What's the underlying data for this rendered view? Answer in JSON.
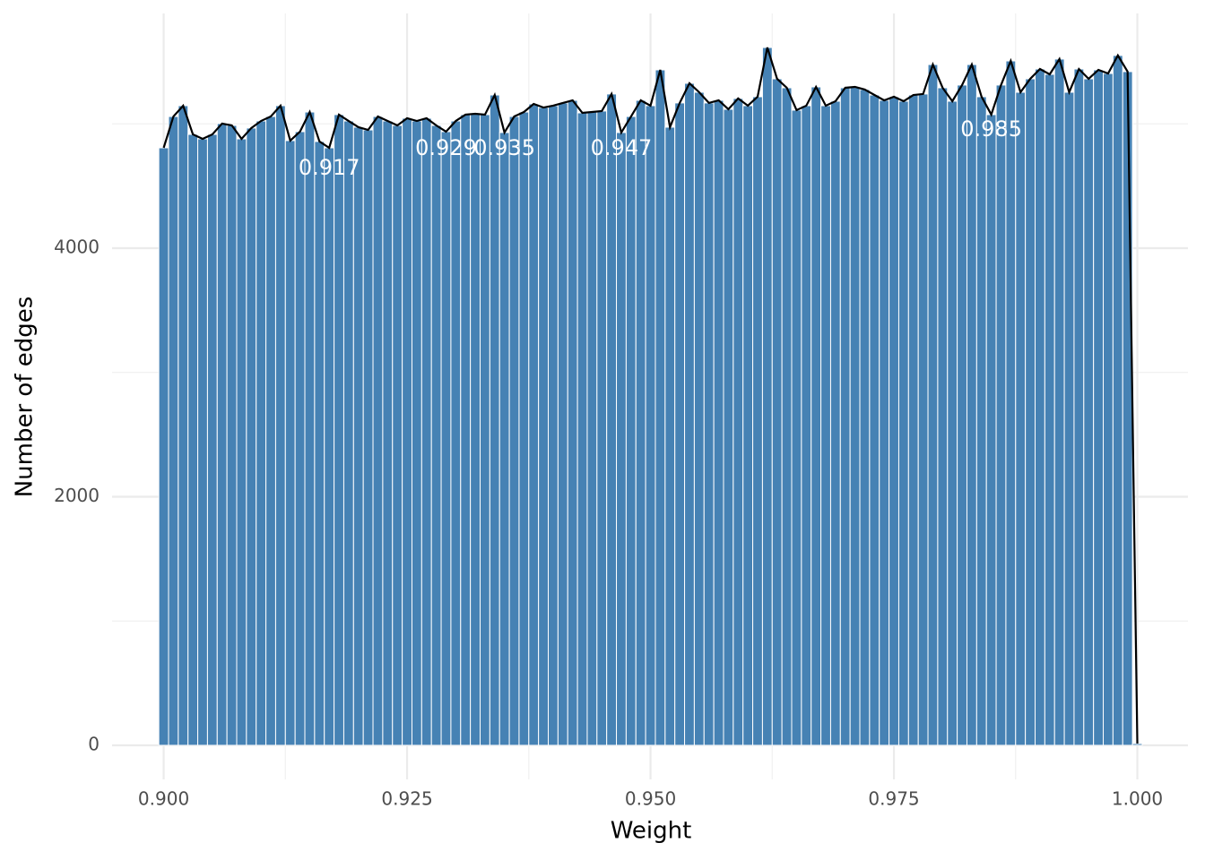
{
  "chart_data": {
    "type": "histogram",
    "x_label": "Weight",
    "y_label": "Number of edges",
    "color": "#4682b4",
    "line_color": "#000000",
    "grid": true,
    "bins": [
      0.8995,
      0.9005,
      0.9015,
      0.9025,
      0.9035,
      0.9045,
      0.9055,
      0.9065,
      0.9075,
      0.9085,
      0.9095,
      0.9105,
      0.9115,
      0.9125,
      0.9135,
      0.9145,
      0.9155,
      0.9165,
      0.9175,
      0.9185,
      0.9195,
      0.9205,
      0.9215,
      0.9225,
      0.9235,
      0.9245,
      0.9255,
      0.9265,
      0.9275,
      0.9285,
      0.9295,
      0.9305,
      0.9315,
      0.9325,
      0.9335,
      0.9345,
      0.9355,
      0.9365,
      0.9375,
      0.9385,
      0.9395,
      0.9405,
      0.9415,
      0.9425,
      0.9435,
      0.9445,
      0.9455,
      0.9465,
      0.9475,
      0.9485,
      0.9495,
      0.9505,
      0.9515,
      0.9525,
      0.9535,
      0.9545,
      0.9555,
      0.9565,
      0.9575,
      0.9585,
      0.9595,
      0.9605,
      0.9615,
      0.9625,
      0.9635,
      0.9645,
      0.9655,
      0.9665,
      0.9675,
      0.9685,
      0.9695,
      0.9705,
      0.9715,
      0.9725,
      0.9735,
      0.9745,
      0.9755,
      0.9765,
      0.9775,
      0.9785,
      0.9795,
      0.9805,
      0.9815,
      0.9825,
      0.9835,
      0.9845,
      0.9855,
      0.9865,
      0.9875,
      0.9885,
      0.9895,
      0.9905,
      0.9915,
      0.9925,
      0.9935,
      0.9945,
      0.9955,
      0.9965,
      0.9975,
      0.9985,
      0.9995,
      1.0005
    ],
    "counts": [
      4807,
      5059,
      5146,
      4915,
      4879,
      4915,
      5002,
      4987,
      4879,
      4966,
      5023,
      5059,
      5146,
      4865,
      4937,
      5095,
      4858,
      4807,
      5074,
      5023,
      4973,
      4951,
      5059,
      5023,
      4987,
      5045,
      5023,
      5045,
      4987,
      4937,
      5023,
      5074,
      5081,
      5074,
      5232,
      4930,
      5059,
      5095,
      5160,
      5131,
      5146,
      5168,
      5189,
      5088,
      5095,
      5103,
      5240,
      4930,
      5059,
      5189,
      5146,
      5434,
      4973,
      5168,
      5326,
      5254,
      5168,
      5189,
      5117,
      5204,
      5146,
      5218,
      5614,
      5362,
      5290,
      5110,
      5146,
      5297,
      5146,
      5182,
      5290,
      5297,
      5276,
      5232,
      5189,
      5218,
      5182,
      5232,
      5240,
      5477,
      5290,
      5182,
      5312,
      5477,
      5218,
      5074,
      5312,
      5506,
      5254,
      5362,
      5441,
      5398,
      5521,
      5254,
      5441,
      5362,
      5434,
      5405,
      5550,
      5420,
      14
    ],
    "annotations": [
      {
        "text": "0.917",
        "x": 0.917,
        "y": 4641
      },
      {
        "text": "0.929",
        "x": 0.929,
        "y": 4800
      },
      {
        "text": "0.935",
        "x": 0.935,
        "y": 4800
      },
      {
        "text": "0.947",
        "x": 0.947,
        "y": 4800
      },
      {
        "text": "0.985",
        "x": 0.985,
        "y": 4950
      }
    ],
    "xlim": [
      0.8947,
      1.0052
    ],
    "ylim": [
      -274,
      5888
    ],
    "xticks": [
      {
        "value": 0.9,
        "label": "0.900"
      },
      {
        "value": 0.925,
        "label": "0.925"
      },
      {
        "value": 0.95,
        "label": "0.950"
      },
      {
        "value": 0.975,
        "label": "0.975"
      },
      {
        "value": 1.0,
        "label": "1.000"
      }
    ],
    "xminorticks": [
      0.9125,
      0.9375,
      0.9625,
      0.9875
    ],
    "yticks": [
      0,
      2000,
      4000
    ],
    "yminorticks": [
      1000,
      3000,
      5000
    ]
  }
}
